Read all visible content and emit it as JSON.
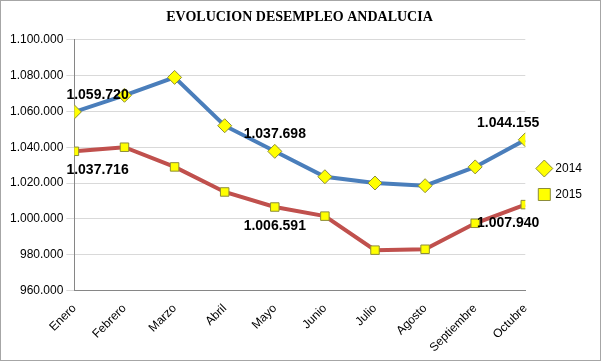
{
  "chart_data": {
    "type": "line",
    "title": "EVOLUCION DESEMPLEO ANDALUCIA",
    "categories": [
      "Enero",
      "Febrero",
      "Marzo",
      "Abril",
      "Mayo",
      "Junio",
      "Julio",
      "Agosto",
      "Septiembre",
      "Octubre"
    ],
    "series": [
      {
        "name": "2014",
        "color": "#4a7ebb",
        "marker": "diamond",
        "line_style": "solid",
        "values": [
          1059720,
          1069000,
          1079000,
          1052000,
          1037698,
          1023500,
          1020000,
          1018500,
          1029000,
          1044155
        ],
        "value_labels": [
          "1.059.720",
          null,
          null,
          null,
          "1.037.698",
          null,
          null,
          null,
          null,
          "1.044.155"
        ]
      },
      {
        "name": "2015",
        "color": "#c0504d",
        "marker": "square",
        "line_style": "solid",
        "values": [
          1037716,
          1040000,
          1029000,
          1015000,
          1006591,
          1001500,
          982500,
          983000,
          997500,
          1007940
        ],
        "value_labels": [
          "1.037.716",
          null,
          null,
          null,
          "1.006.591",
          null,
          null,
          null,
          null,
          "1.007.940"
        ]
      }
    ],
    "ylim": [
      960000,
      1100000
    ],
    "yticks": [
      {
        "value": 960000,
        "label": "960.000"
      },
      {
        "value": 980000,
        "label": "980.000"
      },
      {
        "value": 1000000,
        "label": "1.000.000"
      },
      {
        "value": 1020000,
        "label": "1.020.000"
      },
      {
        "value": 1040000,
        "label": "1.040.000"
      },
      {
        "value": 1060000,
        "label": "1.060.000"
      },
      {
        "value": 1080000,
        "label": "1.080.000"
      },
      {
        "value": 1100000,
        "label": "1.100.000"
      }
    ],
    "grid": true,
    "legend": "right",
    "data_labels": true
  }
}
